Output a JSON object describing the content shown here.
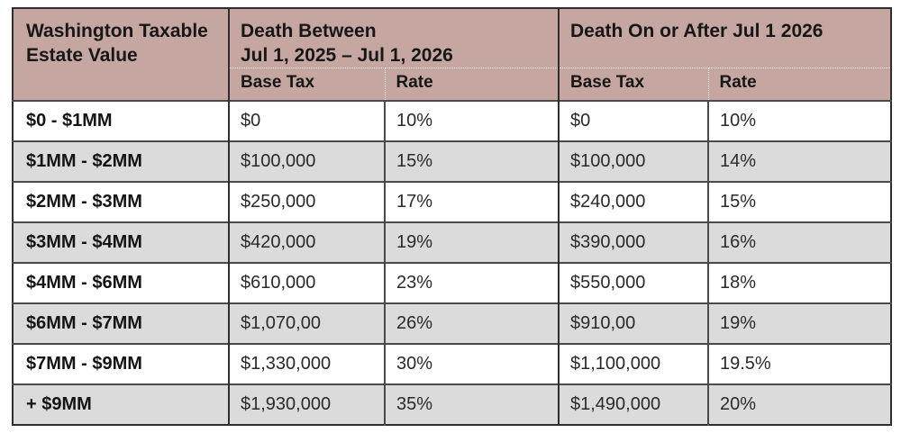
{
  "colors": {
    "header_bg": "#c5a6a0",
    "row_alt_bg": "#dbdbdb",
    "row_bg": "#ffffff",
    "outer_border": "#2e2e2e",
    "inner_border": "#4a4a4a",
    "header_text": "#171717",
    "body_text": "#2a2a2a"
  },
  "chart_data": {
    "type": "table",
    "title": "Washington estate tax rate table",
    "header": {
      "estate_column": "Washington Taxable Estate Value",
      "group1_line1": "Death Between",
      "group1_line2": "Jul 1, 2025 – Jul 1, 2026",
      "group2": "Death On or After Jul 1 2026",
      "base_tax": "Base Tax",
      "rate": "Rate"
    },
    "rows": [
      {
        "estate": "$0 - $1MM",
        "period1_base_tax": "$0",
        "period1_rate": "10%",
        "period2_base_tax": "$0",
        "period2_rate": "10%"
      },
      {
        "estate": "$1MM - $2MM",
        "period1_base_tax": "$100,000",
        "period1_rate": "15%",
        "period2_base_tax": "$100,000",
        "period2_rate": "14%"
      },
      {
        "estate": "$2MM - $3MM",
        "period1_base_tax": "$250,000",
        "period1_rate": "17%",
        "period2_base_tax": "$240,000",
        "period2_rate": "15%"
      },
      {
        "estate": "$3MM - $4MM",
        "period1_base_tax": "$420,000",
        "period1_rate": "19%",
        "period2_base_tax": "$390,000",
        "period2_rate": "16%"
      },
      {
        "estate": "$4MM - $6MM",
        "period1_base_tax": "$610,000",
        "period1_rate": "23%",
        "period2_base_tax": "$550,000",
        "period2_rate": "18%"
      },
      {
        "estate": "$6MM - $7MM",
        "period1_base_tax": "$1,070,00",
        "period1_rate": "26%",
        "period2_base_tax": "$910,00",
        "period2_rate": "19%"
      },
      {
        "estate": "$7MM - $9MM",
        "period1_base_tax": "$1,330,000",
        "period1_rate": "30%",
        "period2_base_tax": "$1,100,000",
        "period2_rate": "19.5%"
      },
      {
        "estate": "+ $9MM",
        "period1_base_tax": "$1,930,000",
        "period1_rate": "35%",
        "period2_base_tax": "$1,490,000",
        "period2_rate": "20%"
      }
    ]
  }
}
